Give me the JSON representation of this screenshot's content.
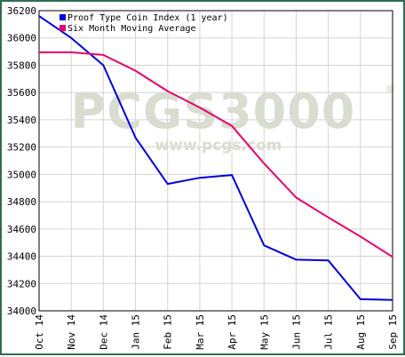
{
  "chart_data": {
    "type": "line",
    "categories": [
      "Oct 14",
      "Nov 14",
      "Dec 14",
      "Jan 15",
      "Feb 15",
      "Mar 15",
      "Apr 15",
      "May 15",
      "Jun 15",
      "Jul 15",
      "Aug 15",
      "Sep 15"
    ],
    "series": [
      {
        "name": "Proof Type Coin Index (1 year)",
        "color": "#0000dd",
        "values": [
          36160,
          36000,
          35800,
          35270,
          34930,
          34975,
          34995,
          34480,
          34375,
          34370,
          34085,
          34080
        ]
      },
      {
        "name": "Six Month Moving Average",
        "color": "#e8006a",
        "values": [
          35895,
          35895,
          35875,
          35760,
          35610,
          35490,
          35355,
          35080,
          34830,
          34685,
          34545,
          34395
        ]
      }
    ],
    "y_ticks": [
      "34000",
      "34200",
      "34400",
      "34600",
      "34800",
      "35000",
      "35200",
      "35400",
      "35600",
      "35800",
      "36000",
      "36200"
    ],
    "ylim": [
      34000,
      36200
    ],
    "grid": true,
    "legend_position": "top-left",
    "watermark": {
      "logo": "PCGS3000",
      "url": "www.pcgs.com"
    }
  }
}
